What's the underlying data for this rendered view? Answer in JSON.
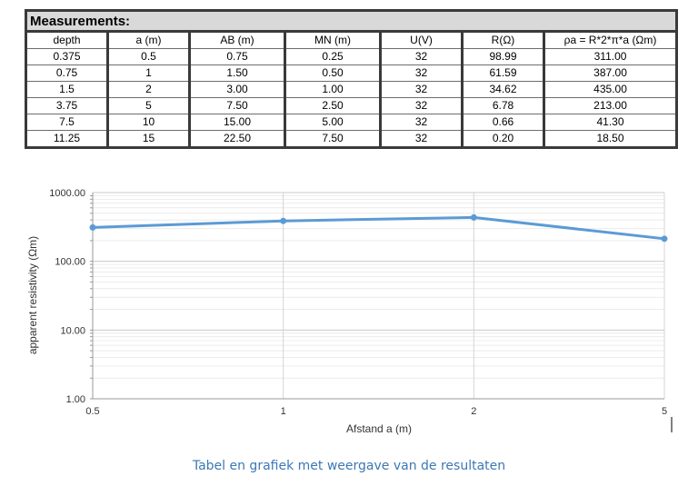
{
  "table": {
    "title": "Measurements:",
    "headers": [
      "depth",
      "a (m)",
      "AB (m)",
      "MN (m)",
      "U(V)",
      "R(Ω)",
      "ρa = R*2*π*a (Ωm)"
    ],
    "rows": [
      [
        "0.375",
        "0.5",
        "0.75",
        "0.25",
        "32",
        "98.99",
        "311.00"
      ],
      [
        "0.75",
        "1",
        "1.50",
        "0.50",
        "32",
        "61.59",
        "387.00"
      ],
      [
        "1.5",
        "2",
        "3.00",
        "1.00",
        "32",
        "34.62",
        "435.00"
      ],
      [
        "3.75",
        "5",
        "7.50",
        "2.50",
        "32",
        "6.78",
        "213.00"
      ],
      [
        "7.5",
        "10",
        "15.00",
        "5.00",
        "32",
        "0.66",
        "41.30"
      ],
      [
        "11.25",
        "15",
        "22.50",
        "7.50",
        "32",
        "0.20",
        "18.50"
      ]
    ]
  },
  "chart_data": {
    "type": "line",
    "x": [
      0.5,
      1,
      2,
      5
    ],
    "categories": [
      "0.5",
      "1",
      "2",
      "5"
    ],
    "values": [
      311,
      387,
      435,
      213
    ],
    "xlabel": "Afstand a (m)",
    "ylabel": "apparent resistivity (Ωm)",
    "yscale": "log",
    "ylim": [
      1,
      1000
    ],
    "ytick_labels": [
      "1000.00",
      "100.00",
      "10.00",
      "1.00"
    ],
    "grid": true,
    "line_color": "#5b9bd5"
  },
  "caption": "Tabel en grafiek met weergave van de resultaten"
}
